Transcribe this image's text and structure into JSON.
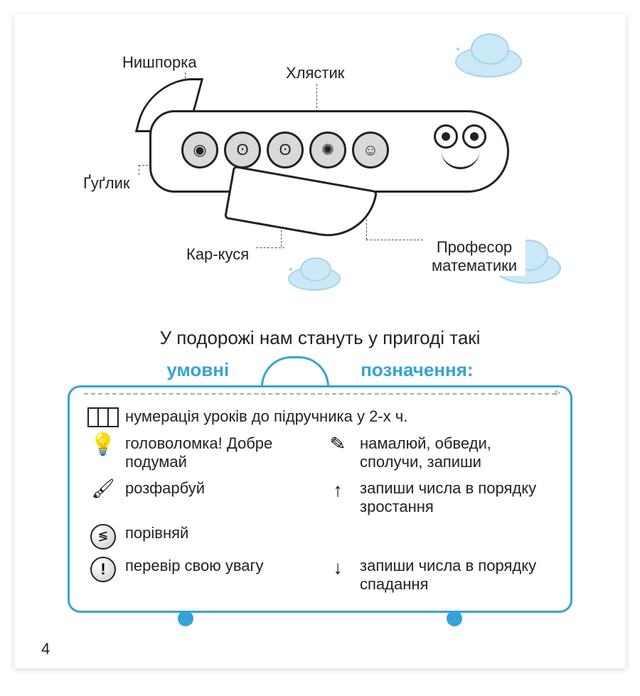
{
  "page": {
    "number": "4",
    "background_color": "#ffffff",
    "accent_color": "#35a3d6",
    "cloud_fill": "#cbe8f6",
    "cloud_stroke": "#a7d3e8",
    "text_color": "#222222",
    "font_family": "Arial"
  },
  "characters": {
    "nyshporka": "Нишпорка",
    "khlystyk": "Хлястик",
    "huhlyk": "Ґуґлик",
    "karkusya": "Кар-куся",
    "profesor": "Професор математики",
    "windows_count": 5
  },
  "intro_line": "У подорожі нам стануть у пригоді такі",
  "handle": {
    "left_word": "умовні",
    "right_word": "позначення:"
  },
  "legend": {
    "book": "нумерація уроків до підручника у 2-х ч.",
    "bulb": "головоломка! Добре подумай",
    "pencil": "намалюй, обведи, сполучи, запиши",
    "brush": "розфарбуй",
    "arrow_up": "запиши числа в порядку зростання",
    "compare": "порівняй",
    "exclaim": "перевір свою увагу",
    "arrow_down": "запиши числа в порядку спадання"
  },
  "icons": {
    "bulb": "💡",
    "pencil": "✎",
    "brush": "🖌",
    "compare": "≶",
    "exclaim": "!",
    "arrow_up": "↑",
    "arrow_down": "↓"
  }
}
